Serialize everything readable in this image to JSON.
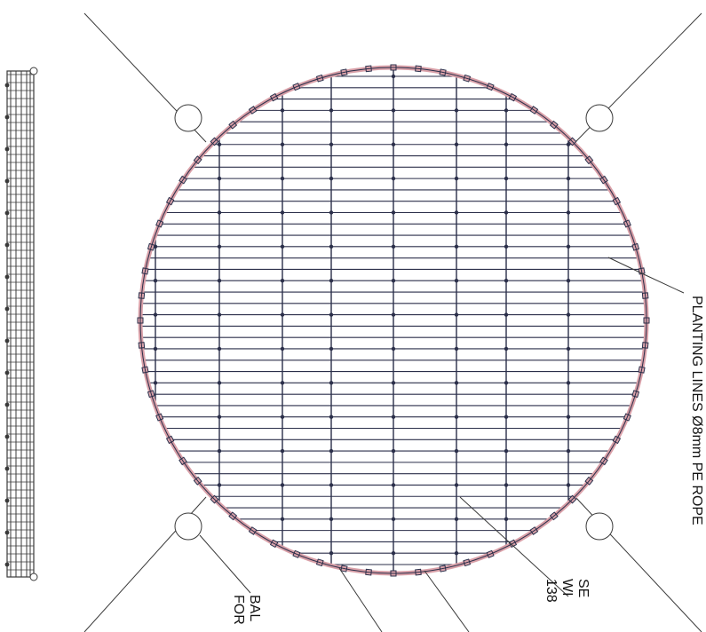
{
  "labels": {
    "planting_lines": "PLANTING LINES Ø8mm PE ROPE",
    "seam_line_1": "SE",
    "seam_line_2": "WI",
    "seam_line_3": "138",
    "ballast_line_1": "BAL",
    "ballast_line_2": "FOR"
  },
  "colors": {
    "line": "#2b2f4a",
    "rope": "#d9a0a8",
    "frame": "#3a3a3a"
  },
  "counts": {
    "planting_lines": 44,
    "longitudinal_lines": 8
  }
}
